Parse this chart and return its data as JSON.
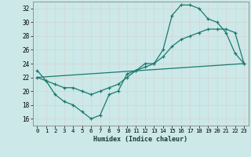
{
  "xlabel": "Humidex (Indice chaleur)",
  "bg_color": "#cce8e8",
  "grid_color": "#d4d4d4",
  "line_color": "#1a7a6e",
  "xlim": [
    -0.5,
    23.5
  ],
  "ylim": [
    15.0,
    33.0
  ],
  "xticks": [
    0,
    1,
    2,
    3,
    4,
    5,
    6,
    7,
    8,
    9,
    10,
    11,
    12,
    13,
    14,
    15,
    16,
    17,
    18,
    19,
    20,
    21,
    22,
    23
  ],
  "yticks": [
    16,
    18,
    20,
    22,
    24,
    26,
    28,
    30,
    32
  ],
  "line1_x": [
    0,
    1,
    2,
    3,
    4,
    5,
    6,
    7,
    8,
    9,
    10,
    11,
    12,
    13,
    14,
    15,
    16,
    17,
    18,
    19,
    20,
    21,
    22,
    23
  ],
  "line1_y": [
    23,
    21.5,
    19.5,
    18.5,
    18,
    17,
    16,
    16.5,
    19.5,
    20,
    22.5,
    23,
    24,
    24,
    26,
    31,
    32.5,
    32.5,
    32,
    30.5,
    30,
    28.5,
    25.5,
    24
  ],
  "line2_x": [
    0,
    1,
    2,
    3,
    4,
    5,
    6,
    7,
    8,
    9,
    10,
    11,
    12,
    13,
    14,
    15,
    16,
    17,
    18,
    19,
    20,
    21,
    22,
    23
  ],
  "line2_y": [
    22,
    21.5,
    21,
    20.5,
    20.5,
    20,
    19.5,
    20,
    20.5,
    21,
    22,
    23,
    23.5,
    24,
    25,
    26.5,
    27.5,
    28,
    28.5,
    29,
    29,
    29,
    28.5,
    24
  ],
  "line3_x": [
    0,
    23
  ],
  "line3_y": [
    22.0,
    24.0
  ]
}
